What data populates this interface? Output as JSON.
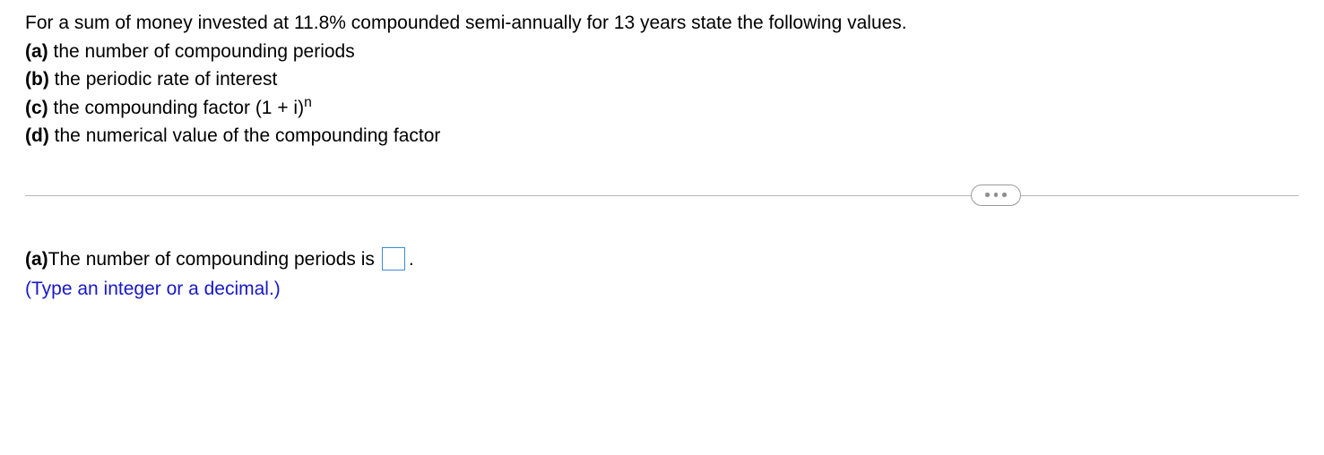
{
  "question": {
    "intro": "For a sum of money invested at 11.8% compounded semi-annually for 13 years state the following values.",
    "parts": {
      "a": {
        "label": "(a)",
        "text": " the number of compounding periods"
      },
      "b": {
        "label": "(b)",
        "text": " the periodic rate of interest"
      },
      "c": {
        "label": "(c)",
        "text_prefix": " the compounding factor (1 + i)",
        "superscript": "n"
      },
      "d": {
        "label": "(d)",
        "text": " the numerical value of the compounding factor"
      }
    }
  },
  "answer": {
    "label": "(a)",
    "prompt": " The number of compounding periods is ",
    "input_value": "",
    "period": ".",
    "hint": "(Type an integer or a decimal.)"
  }
}
